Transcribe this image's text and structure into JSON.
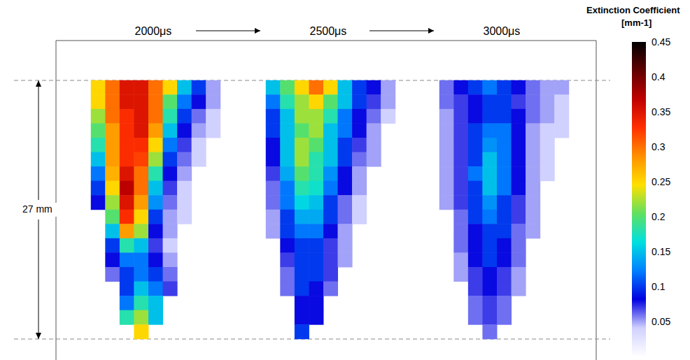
{
  "chart_data": {
    "type": "heatmap",
    "tick_labels": false,
    "annotation": "27 mm",
    "panels": [
      {
        "title": "2000μs",
        "cells": [
          [
            0.25,
            0.3,
            0.35,
            0.35,
            0.3,
            0.25,
            0.15,
            0.1,
            0.05
          ],
          [
            0.25,
            0.3,
            0.35,
            0.35,
            0.3,
            0.2,
            0.12,
            0.08,
            0.05
          ],
          [
            0.22,
            0.3,
            0.33,
            0.35,
            0.3,
            0.18,
            0.1,
            0.06,
            0.04
          ],
          [
            0.2,
            0.28,
            0.33,
            0.35,
            0.28,
            0.15,
            0.08,
            0.05,
            0.04
          ],
          [
            0.18,
            0.28,
            0.33,
            0.33,
            0.25,
            0.12,
            0.07,
            0.04,
            null
          ],
          [
            0.15,
            0.28,
            0.33,
            0.32,
            0.22,
            0.1,
            0.06,
            0.04,
            null
          ],
          [
            0.12,
            0.27,
            0.35,
            0.3,
            0.18,
            0.08,
            0.05,
            null,
            null
          ],
          [
            0.1,
            0.25,
            0.37,
            0.3,
            0.15,
            0.07,
            0.04,
            null,
            null
          ],
          [
            0.08,
            0.22,
            0.35,
            0.28,
            0.13,
            0.06,
            0.04,
            null,
            null
          ],
          [
            null,
            0.2,
            0.33,
            0.25,
            0.1,
            0.05,
            0.04,
            null,
            null
          ],
          [
            null,
            0.15,
            0.28,
            0.22,
            0.08,
            0.05,
            null,
            null,
            null
          ],
          [
            null,
            0.1,
            0.18,
            0.15,
            0.07,
            0.04,
            null,
            null,
            null
          ],
          [
            null,
            0.08,
            0.12,
            0.12,
            0.08,
            0.05,
            null,
            null,
            null
          ],
          [
            null,
            0.06,
            0.1,
            0.12,
            0.1,
            0.06,
            null,
            null,
            null
          ],
          [
            null,
            null,
            0.1,
            0.15,
            0.12,
            0.07,
            null,
            null,
            null
          ],
          [
            null,
            null,
            0.12,
            0.18,
            0.15,
            null,
            null,
            null,
            null
          ],
          [
            null,
            null,
            0.18,
            0.22,
            0.15,
            null,
            null,
            null,
            null
          ],
          [
            null,
            null,
            null,
            0.25,
            null,
            null,
            null,
            null,
            null
          ]
        ]
      },
      {
        "title": "2500μs",
        "cells": [
          [
            0.15,
            0.2,
            0.25,
            0.3,
            0.25,
            0.15,
            0.1,
            0.08,
            0.05
          ],
          [
            0.12,
            0.18,
            0.22,
            0.25,
            0.2,
            0.15,
            0.1,
            0.07,
            0.05
          ],
          [
            0.1,
            0.15,
            0.22,
            0.22,
            0.18,
            0.12,
            0.08,
            0.06,
            0.04
          ],
          [
            0.1,
            0.15,
            0.2,
            0.22,
            0.15,
            0.12,
            0.08,
            0.05,
            null
          ],
          [
            0.08,
            0.15,
            0.22,
            0.2,
            0.15,
            0.1,
            0.07,
            0.05,
            null
          ],
          [
            0.08,
            0.15,
            0.22,
            0.18,
            0.15,
            0.1,
            0.06,
            0.05,
            null
          ],
          [
            0.07,
            0.14,
            0.2,
            0.18,
            0.13,
            0.08,
            0.05,
            null,
            null
          ],
          [
            0.06,
            0.12,
            0.18,
            0.17,
            0.12,
            0.08,
            0.05,
            null,
            null
          ],
          [
            0.06,
            0.12,
            0.16,
            0.15,
            0.1,
            0.06,
            0.04,
            null,
            null
          ],
          [
            0.05,
            0.1,
            0.14,
            0.14,
            0.1,
            0.06,
            0.04,
            null,
            null
          ],
          [
            0.05,
            0.1,
            0.12,
            0.12,
            0.08,
            0.05,
            null,
            null,
            null
          ],
          [
            null,
            0.08,
            0.1,
            0.1,
            0.07,
            0.05,
            null,
            null,
            null
          ],
          [
            null,
            0.07,
            0.1,
            0.1,
            0.07,
            0.05,
            null,
            null,
            null
          ],
          [
            null,
            0.06,
            0.1,
            0.1,
            0.07,
            null,
            null,
            null,
            null
          ],
          [
            null,
            0.06,
            0.1,
            0.08,
            0.06,
            null,
            null,
            null,
            null
          ],
          [
            null,
            null,
            0.08,
            0.08,
            null,
            null,
            null,
            null,
            null
          ],
          [
            null,
            null,
            0.08,
            0.08,
            null,
            null,
            null,
            null,
            null
          ],
          [
            null,
            null,
            0.1,
            null,
            null,
            null,
            null,
            null,
            null
          ]
        ]
      },
      {
        "title": "3000μs",
        "cells": [
          [
            0.06,
            0.08,
            0.1,
            0.12,
            0.1,
            0.08,
            0.06,
            0.05,
            0.05
          ],
          [
            0.06,
            0.07,
            0.08,
            0.1,
            0.1,
            0.07,
            0.06,
            0.05,
            0.04
          ],
          [
            0.05,
            0.07,
            0.08,
            0.1,
            0.1,
            0.08,
            0.06,
            0.05,
            0.04
          ],
          [
            0.05,
            0.07,
            0.1,
            0.12,
            0.12,
            0.08,
            0.05,
            0.04,
            0.04
          ],
          [
            0.05,
            0.07,
            0.1,
            0.13,
            0.12,
            0.08,
            0.05,
            0.04,
            null
          ],
          [
            0.05,
            0.07,
            0.1,
            0.15,
            0.12,
            0.08,
            0.05,
            0.04,
            null
          ],
          [
            0.05,
            0.07,
            0.12,
            0.15,
            0.12,
            0.08,
            0.05,
            0.04,
            null
          ],
          [
            0.05,
            0.07,
            0.1,
            0.15,
            0.12,
            0.08,
            0.05,
            null,
            null
          ],
          [
            0.05,
            0.07,
            0.1,
            0.13,
            0.1,
            0.07,
            0.05,
            null,
            null
          ],
          [
            null,
            0.06,
            0.1,
            0.12,
            0.1,
            0.07,
            0.05,
            null,
            null
          ],
          [
            null,
            0.06,
            0.08,
            0.1,
            0.1,
            0.06,
            0.05,
            null,
            null
          ],
          [
            null,
            0.06,
            0.08,
            0.1,
            0.08,
            0.06,
            null,
            null,
            null
          ],
          [
            null,
            0.05,
            0.08,
            0.1,
            0.08,
            0.06,
            null,
            null,
            null
          ],
          [
            null,
            0.05,
            0.07,
            0.08,
            0.07,
            0.05,
            null,
            null,
            null
          ],
          [
            null,
            null,
            0.07,
            0.08,
            0.07,
            0.05,
            null,
            null,
            null
          ],
          [
            null,
            null,
            0.06,
            0.07,
            0.06,
            null,
            null,
            null,
            null
          ],
          [
            null,
            null,
            0.06,
            0.07,
            0.06,
            null,
            null,
            null,
            null
          ],
          [
            null,
            null,
            null,
            0.06,
            null,
            null,
            null,
            null,
            null
          ]
        ]
      }
    ],
    "colorbar": {
      "title": "Extinction Coefficient",
      "unit": "[mm-1]",
      "range": [
        0,
        0.45
      ],
      "ticks": [
        0.05,
        0.1,
        0.15,
        0.2,
        0.25,
        0.3,
        0.35,
        0.4,
        0.45
      ],
      "colors": [
        "#ffffff",
        "#d0d0ff",
        "#0000e0",
        "#0080ff",
        "#00e0e0",
        "#60e060",
        "#ffe000",
        "#ff9000",
        "#ff3000",
        "#c00000",
        "#600000",
        "#000000"
      ]
    }
  }
}
